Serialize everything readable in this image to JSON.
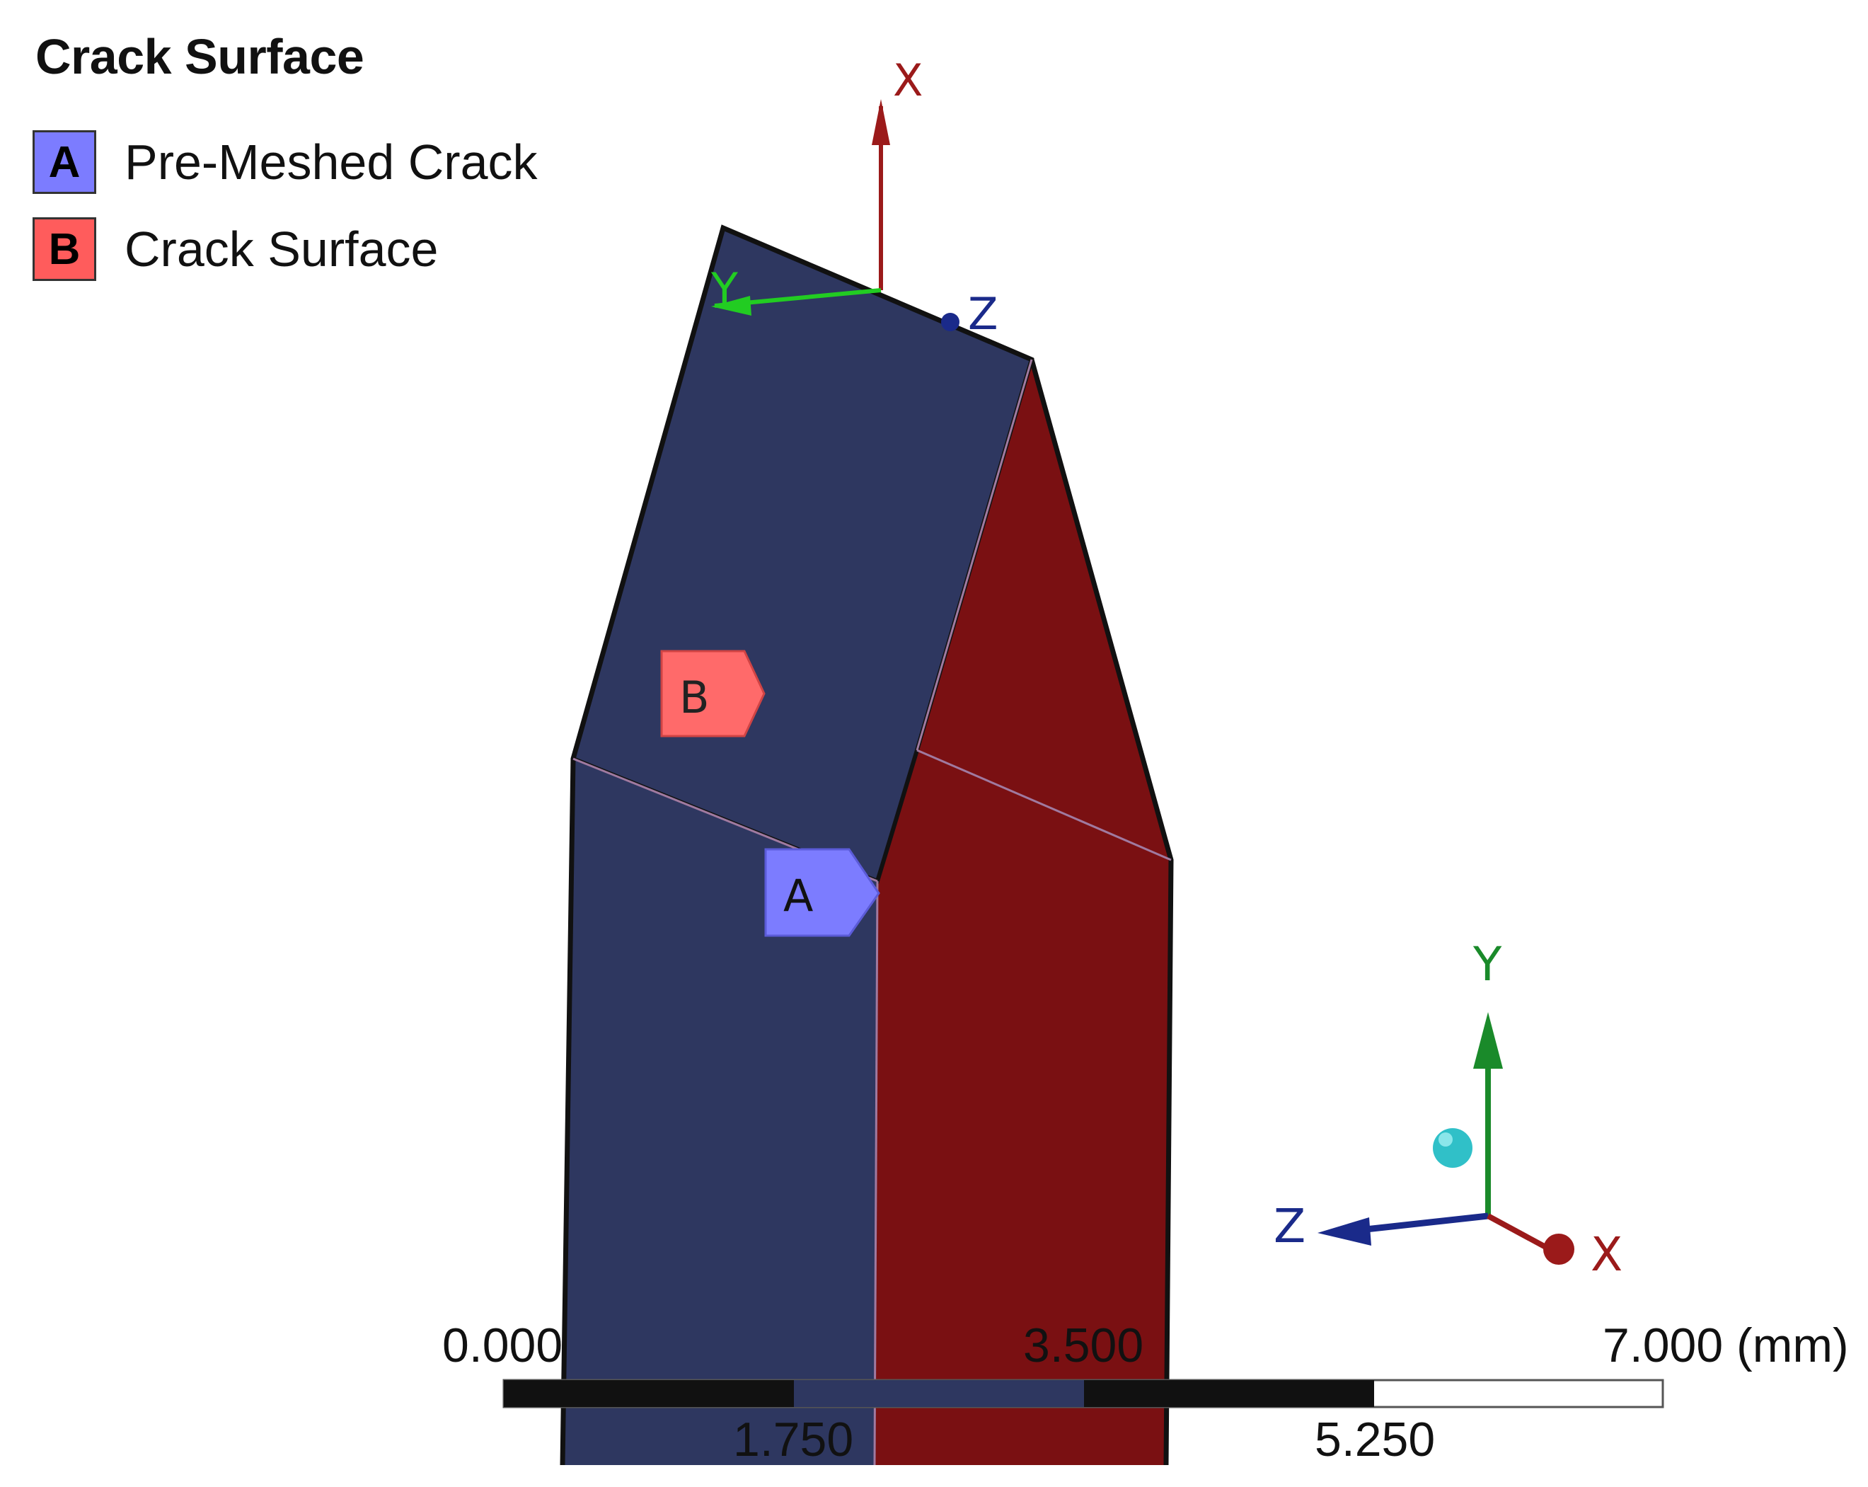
{
  "legend": {
    "title": "Crack Surface",
    "items": [
      {
        "letter": "A",
        "label": "Pre-Meshed Crack",
        "color": "#7c7cff"
      },
      {
        "letter": "B",
        "label": "Crack Surface",
        "color": "#ff5c5c"
      }
    ]
  },
  "model": {
    "face_left_color": "#2e3760",
    "face_right_color": "#7a1012",
    "edge_highlight_color": "#a07aa0"
  },
  "tags": {
    "a": {
      "letter": "A",
      "color": "#7c7cff"
    },
    "b": {
      "letter": "B",
      "color": "#ff6a6a"
    }
  },
  "local_csys": {
    "x": "X",
    "y": "Y",
    "z": "Z"
  },
  "global_triad": {
    "x": "X",
    "y": "Y",
    "z": "Z"
  },
  "scale_bar": {
    "top_labels": [
      "0.000",
      "3.500",
      "7.000 (mm)"
    ],
    "bottom_labels": [
      "1.750",
      "5.250"
    ]
  },
  "colors": {
    "axis_x": "#9b1a1a",
    "axis_y": "#1a8a2a",
    "axis_z": "#1a2a8a",
    "local_y": "#22cc22",
    "triad_ball": "#30c0c8"
  }
}
